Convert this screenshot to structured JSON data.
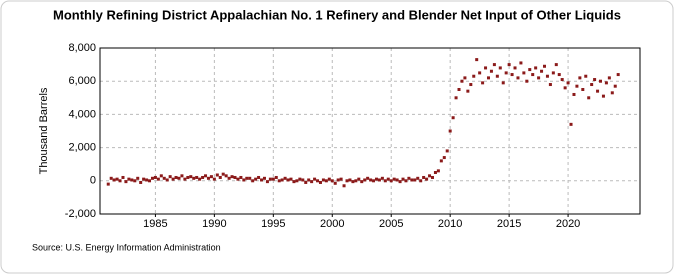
{
  "chart_data": {
    "type": "scatter",
    "title": "Monthly Refining District Appalachian No. 1 Refinery and Blender Net Input of Other Liquids",
    "y_label": "Thousand Barrels",
    "source": "Source: U.S. Energy Information Administration",
    "color": "#8b1a1a",
    "grid": true,
    "xlim": [
      1980.3,
      2026.1
    ],
    "xticks": [
      1985,
      1990,
      1995,
      2000,
      2005,
      2010,
      2015,
      2020
    ],
    "ylim": [
      -2000,
      8000
    ],
    "yticks": [
      {
        "value": -2000,
        "label": "-2,000"
      },
      0,
      {
        "value": 2000,
        "label": "2,000"
      },
      {
        "value": 4000,
        "label": "4,000"
      },
      {
        "value": 6000,
        "label": "6,000"
      },
      {
        "value": 8000,
        "label": "8,000"
      }
    ],
    "x": [
      1981,
      1981.25,
      1981.5,
      1981.75,
      1982,
      1982.25,
      1982.5,
      1982.75,
      1983,
      1983.25,
      1983.5,
      1983.75,
      1984,
      1984.25,
      1984.5,
      1984.75,
      1985,
      1985.25,
      1985.5,
      1985.75,
      1986,
      1986.25,
      1986.5,
      1986.75,
      1987,
      1987.25,
      1987.5,
      1987.75,
      1988,
      1988.25,
      1988.5,
      1988.75,
      1989,
      1989.25,
      1989.5,
      1989.75,
      1990,
      1990.25,
      1990.5,
      1990.75,
      1991,
      1991.25,
      1991.5,
      1991.75,
      1992,
      1992.25,
      1992.5,
      1992.75,
      1993,
      1993.25,
      1993.5,
      1993.75,
      1994,
      1994.25,
      1994.5,
      1994.75,
      1995,
      1995.25,
      1995.5,
      1995.75,
      1996,
      1996.25,
      1996.5,
      1996.75,
      1997,
      1997.25,
      1997.5,
      1997.75,
      1998,
      1998.25,
      1998.5,
      1998.75,
      1999,
      1999.25,
      1999.5,
      1999.75,
      2000,
      2000.25,
      2000.5,
      2000.75,
      2001,
      2001.25,
      2001.5,
      2001.75,
      2002,
      2002.25,
      2002.5,
      2002.75,
      2003,
      2003.25,
      2003.5,
      2003.75,
      2004,
      2004.25,
      2004.5,
      2004.75,
      2005,
      2005.25,
      2005.5,
      2005.75,
      2006,
      2006.25,
      2006.5,
      2006.75,
      2007,
      2007.25,
      2007.5,
      2007.75,
      2008,
      2008.25,
      2008.5,
      2008.75,
      2009,
      2009.25,
      2009.5,
      2009.75,
      2010,
      2010.25,
      2010.5,
      2010.75,
      2011,
      2011.25,
      2011.5,
      2011.75,
      2012,
      2012.25,
      2012.5,
      2012.75,
      2013,
      2013.25,
      2013.5,
      2013.75,
      2014,
      2014.25,
      2014.5,
      2014.75,
      2015,
      2015.25,
      2015.5,
      2015.75,
      2016,
      2016.25,
      2016.5,
      2016.75,
      2017,
      2017.25,
      2017.5,
      2017.75,
      2018,
      2018.25,
      2018.5,
      2018.75,
      2019,
      2019.25,
      2019.5,
      2019.75,
      2020,
      2020.25,
      2020.5,
      2020.75,
      2021,
      2021.25,
      2021.5,
      2021.75,
      2022,
      2022.25,
      2022.5,
      2022.75,
      2023,
      2023.25,
      2023.5,
      2023.75,
      2024,
      2024.25
    ],
    "values": [
      -200,
      150,
      50,
      100,
      0,
      200,
      -50,
      100,
      50,
      0,
      150,
      -100,
      100,
      50,
      0,
      150,
      200,
      100,
      300,
      150,
      50,
      250,
      100,
      200,
      150,
      300,
      100,
      200,
      250,
      150,
      200,
      100,
      200,
      300,
      150,
      250,
      100,
      350,
      200,
      400,
      300,
      150,
      250,
      200,
      100,
      200,
      50,
      150,
      150,
      0,
      100,
      200,
      50,
      150,
      -50,
      100,
      100,
      200,
      0,
      50,
      150,
      50,
      100,
      -50,
      0,
      100,
      50,
      -100,
      50,
      -50,
      100,
      0,
      -100,
      50,
      0,
      100,
      0,
      -150,
      50,
      100,
      -300,
      0,
      50,
      -50,
      0,
      100,
      -50,
      50,
      150,
      50,
      0,
      100,
      50,
      150,
      0,
      100,
      0,
      100,
      50,
      -50,
      100,
      0,
      150,
      50,
      50,
      150,
      0,
      200,
      100,
      300,
      200,
      500,
      600,
      1200,
      1400,
      1800,
      3000,
      3800,
      5000,
      5500,
      6000,
      6200,
      5400,
      5800,
      6300,
      7300,
      6500,
      5900,
      6800,
      6200,
      6600,
      7000,
      6300,
      6800,
      5900,
      6500,
      7000,
      6400,
      6800,
      6200,
      7100,
      6500,
      6000,
      6700,
      6400,
      6800,
      6200,
      6600,
      6900,
      6300,
      5800,
      6500,
      7000,
      6400,
      6100,
      5600,
      5900,
      3400,
      5200,
      5700,
      6200,
      5500,
      6300,
      5000,
      5800,
      6100,
      5400,
      6000,
      5100,
      5900,
      6200,
      5300,
      5700,
      6400
    ]
  }
}
